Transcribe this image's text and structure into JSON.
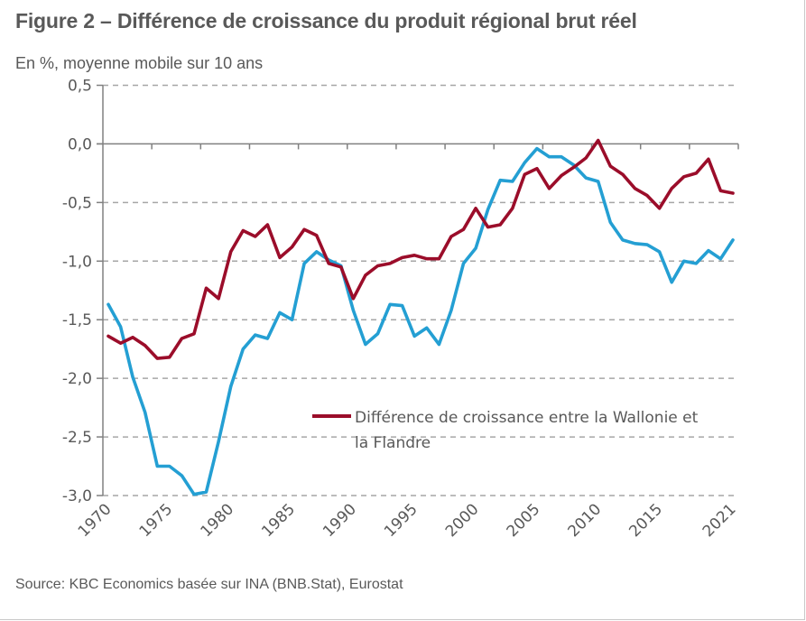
{
  "title": "Figure 2 – Différence de croissance du produit régional brut réel",
  "subtitle": "En %, moyenne mobile sur 10 ans",
  "source": "Source: KBC Economics basée sur INA (BNB.Stat), Eurostat",
  "colors": {
    "red_series": "#9B0D2A",
    "blue_series": "#249FD3",
    "axis": "#808080",
    "grid": "#A6A6A6",
    "text": "#595959"
  },
  "chart_data": {
    "type": "line",
    "title": "Figure 2 – Différence de croissance du produit régional brut réel",
    "ylabel": "En %, moyenne mobile sur 10 ans",
    "xlabel": "",
    "ylim": [
      -3.0,
      0.5
    ],
    "xlim": [
      1970,
      2021
    ],
    "grid": "horizontal-dashed",
    "y_ticks": [
      "0,5",
      "0,0",
      "-0,5",
      "-1,0",
      "-1,5",
      "-2,0",
      "-2,5",
      "-3,0"
    ],
    "y_tick_values": [
      0.5,
      0.0,
      -0.5,
      -1.0,
      -1.5,
      -2.0,
      -2.5,
      -3.0
    ],
    "x_ticks": [
      "1970",
      "1975",
      "1980",
      "1985",
      "1990",
      "1995",
      "2000",
      "2005",
      "2010",
      "2015",
      "2021"
    ],
    "x_tick_values": [
      1970,
      1975,
      1980,
      1985,
      1990,
      1995,
      2000,
      2005,
      2010,
      2015,
      2021
    ],
    "legend_position": "center-right",
    "legend": [
      "Différence de croissance entre la Wallonie et",
      "la Flandre"
    ],
    "x": [
      1970,
      1971,
      1972,
      1973,
      1974,
      1975,
      1976,
      1977,
      1978,
      1979,
      1980,
      1981,
      1982,
      1983,
      1984,
      1985,
      1986,
      1987,
      1988,
      1989,
      1990,
      1991,
      1992,
      1993,
      1994,
      1995,
      1996,
      1997,
      1998,
      1999,
      2000,
      2001,
      2002,
      2003,
      2004,
      2005,
      2006,
      2007,
      2008,
      2009,
      2010,
      2011,
      2012,
      2013,
      2014,
      2015,
      2016,
      2017,
      2018,
      2019,
      2020,
      2021
    ],
    "series": [
      {
        "name": "Différence de croissance entre la Wallonie et la Flandre",
        "color": "#9B0D2A",
        "values": [
          -1.64,
          -1.7,
          -1.65,
          -1.72,
          -1.83,
          -1.82,
          -1.66,
          -1.62,
          -1.23,
          -1.32,
          -0.92,
          -0.74,
          -0.79,
          -0.69,
          -0.97,
          -0.88,
          -0.73,
          -0.78,
          -1.02,
          -1.05,
          -1.32,
          -1.12,
          -1.04,
          -1.02,
          -0.97,
          -0.95,
          -0.98,
          -0.98,
          -0.79,
          -0.73,
          -0.55,
          -0.71,
          -0.69,
          -0.55,
          -0.26,
          -0.21,
          -0.38,
          -0.27,
          -0.2,
          -0.12,
          0.03,
          -0.19,
          -0.26,
          -0.38,
          -0.44,
          -0.55,
          -0.38,
          -0.28,
          -0.25,
          -0.13,
          -0.4,
          -0.42
        ]
      },
      {
        "name": "",
        "color": "#249FD3",
        "values": [
          -1.37,
          -1.56,
          -1.99,
          -2.29,
          -2.75,
          -2.75,
          -2.83,
          -2.99,
          -2.97,
          -2.54,
          -2.07,
          -1.75,
          -1.63,
          -1.66,
          -1.44,
          -1.5,
          -1.02,
          -0.92,
          -0.99,
          -1.04,
          -1.42,
          -1.71,
          -1.62,
          -1.37,
          -1.38,
          -1.64,
          -1.57,
          -1.71,
          -1.42,
          -1.02,
          -0.89,
          -0.56,
          -0.31,
          -0.32,
          -0.16,
          -0.04,
          -0.11,
          -0.11,
          -0.18,
          -0.29,
          -0.32,
          -0.67,
          -0.82,
          -0.85,
          -0.86,
          -0.92,
          -1.18,
          -1.0,
          -1.02,
          -0.91,
          -0.98,
          -0.82
        ]
      }
    ]
  }
}
